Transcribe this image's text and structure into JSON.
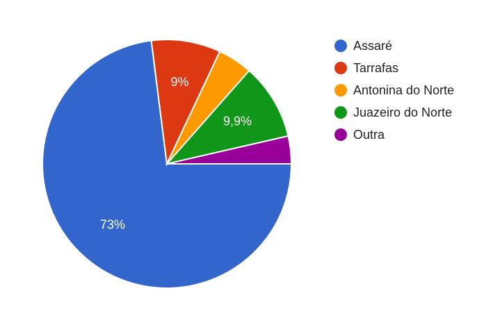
{
  "chart_data": {
    "type": "pie",
    "categories": [
      "Assaré",
      "Tarrafas",
      "Antonina do Norte",
      "Juazeiro do Norte",
      "Outra"
    ],
    "values": [
      73,
      9,
      4.5,
      9.9,
      3.6
    ],
    "value_labels": [
      "73%",
      "9%",
      null,
      "9,9%",
      null
    ],
    "colors": [
      "#3366cc",
      "#dc3912",
      "#ff9900",
      "#109618",
      "#990099"
    ],
    "legend": "right"
  }
}
